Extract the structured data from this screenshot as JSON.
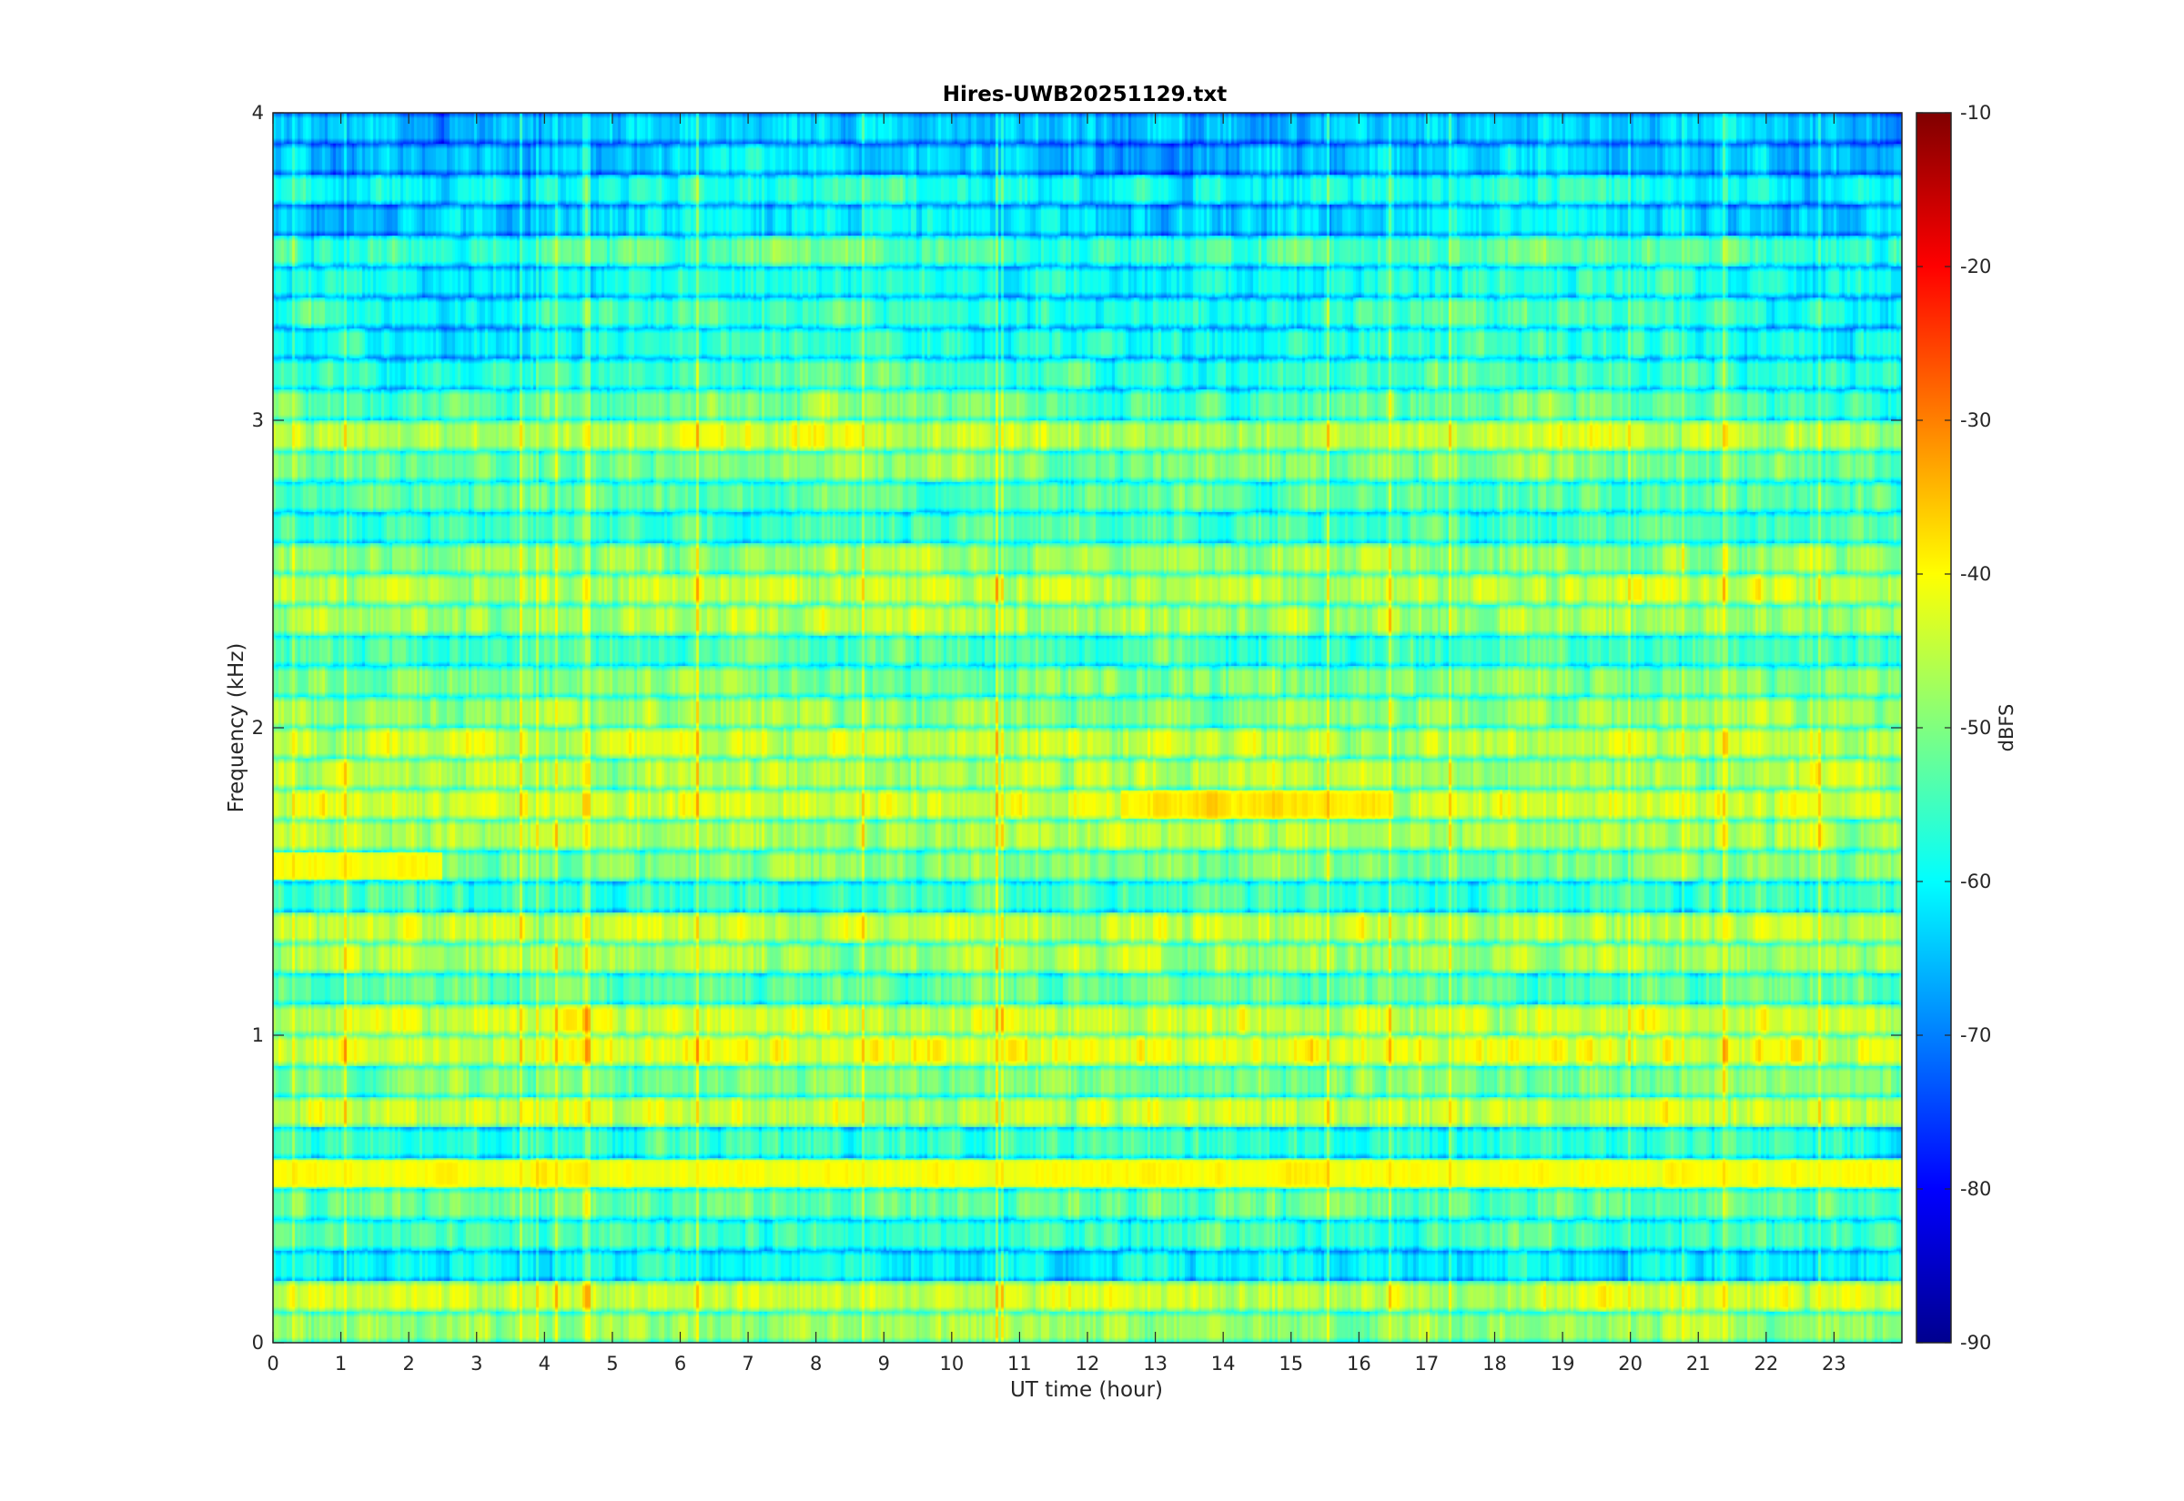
{
  "chart_data": {
    "type": "heatmap",
    "title": "Hires-UWB20251129.txt",
    "xlabel": "UT time (hour)",
    "ylabel": "Frequency (kHz)",
    "colorbar_label": "dBFS",
    "colormap": "jet",
    "xlim": [
      0,
      24
    ],
    "ylim": [
      0,
      4
    ],
    "clim": [
      -90,
      -10
    ],
    "xticks": [
      "0",
      "1",
      "2",
      "3",
      "4",
      "5",
      "6",
      "7",
      "8",
      "9",
      "10",
      "11",
      "12",
      "13",
      "14",
      "15",
      "16",
      "17",
      "18",
      "19",
      "20",
      "21",
      "22",
      "23"
    ],
    "yticks": [
      "0",
      "1",
      "2",
      "3",
      "4"
    ],
    "cticks": [
      "-90",
      "-80",
      "-70",
      "-60",
      "-50",
      "-40",
      "-30",
      "-20",
      "-10"
    ],
    "grid": false,
    "band_spacing_khz": 0.1,
    "band_base_levels_dbfs": [
      -48,
      -44,
      -60,
      -55,
      -52,
      -47,
      -56,
      -44,
      -50,
      -42,
      -44,
      -52,
      -47,
      -45,
      -55,
      -50,
      -46,
      -43,
      -46,
      -45,
      -48,
      -50,
      -54,
      -47,
      -45,
      -48,
      -54,
      -53,
      -50,
      -45,
      -52,
      -55,
      -57,
      -56,
      -58,
      -54,
      -62,
      -58,
      -64,
      -64
    ],
    "notable_features": [
      {
        "t_start": 0.0,
        "t_end": 2.5,
        "freq_khz": 1.55,
        "level_dbfs": -34
      },
      {
        "t_start": 0.0,
        "t_end": 24.0,
        "freq_khz": 0.55,
        "level_dbfs": -36
      },
      {
        "t_start": 12.5,
        "t_end": 16.5,
        "freq_khz": 1.75,
        "level_dbfs": -35
      }
    ]
  }
}
